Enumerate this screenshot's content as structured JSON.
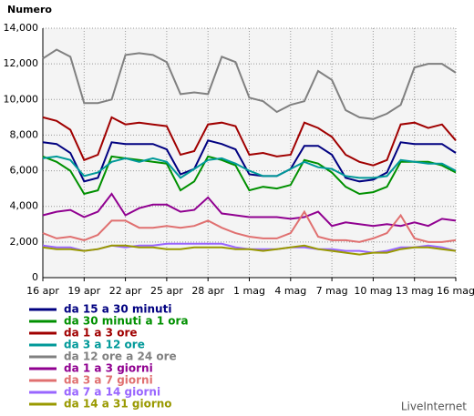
{
  "chart_data": {
    "type": "line",
    "ylabel": "Numero",
    "brand": "LiveInternet",
    "grid": true,
    "legend": "bottom",
    "categories": [
      "16 apr",
      null,
      null,
      "19 apr",
      null,
      null,
      "22 apr",
      null,
      null,
      "25 apr",
      null,
      null,
      "28 apr",
      null,
      null,
      "1 mag",
      null,
      null,
      "4 mag",
      null,
      null,
      "7 mag",
      null,
      null,
      "10 mag",
      null,
      null,
      "13 mag",
      null,
      null,
      "16 mag"
    ],
    "ylim": [
      0,
      14000
    ],
    "yticks": [
      0,
      {
        "value": 2000,
        "label": "2,000"
      },
      {
        "value": 4000,
        "label": "4,000"
      },
      {
        "value": 6000,
        "label": "6,000"
      },
      {
        "value": 8000,
        "label": "8,000"
      },
      {
        "value": 10000,
        "label": "10,000"
      },
      {
        "value": 12000,
        "label": "12,000"
      },
      {
        "value": 14000,
        "label": "14,000"
      }
    ],
    "series": [
      {
        "name": "da 15 a 30 minuti",
        "color": "#000080",
        "values": [
          7600,
          7500,
          7000,
          5400,
          5600,
          7600,
          7500,
          7500,
          7500,
          7200,
          5800,
          6100,
          7700,
          7500,
          7200,
          5800,
          5700,
          5700,
          6100,
          7400,
          7400,
          6900,
          5600,
          5400,
          5500,
          5900,
          7600,
          7500,
          7500,
          7500,
          7000
        ]
      },
      {
        "name": "da 30 minuti a 1 ora",
        "color": "#009000",
        "values": [
          6800,
          6500,
          6000,
          4700,
          4900,
          6800,
          6700,
          6600,
          6500,
          6400,
          4900,
          5400,
          6800,
          6600,
          6300,
          4900,
          5100,
          5000,
          5200,
          6600,
          6400,
          5900,
          5100,
          4700,
          4800,
          5100,
          6500,
          6500,
          6500,
          6300,
          5900
        ]
      },
      {
        "name": "da 1 a 3 ore",
        "color": "#a00000",
        "values": [
          9000,
          8800,
          8300,
          6600,
          6900,
          9000,
          8600,
          8700,
          8600,
          8500,
          6900,
          7100,
          8600,
          8700,
          8500,
          6900,
          7000,
          6800,
          6900,
          8700,
          8400,
          7900,
          6900,
          6500,
          6300,
          6600,
          8600,
          8700,
          8400,
          8600,
          7700
        ]
      },
      {
        "name": "da 3 a 12 ore",
        "color": "#009999",
        "values": [
          6700,
          6800,
          6600,
          5700,
          5900,
          6500,
          6700,
          6500,
          6700,
          6500,
          5600,
          6100,
          6600,
          6700,
          6400,
          6000,
          5700,
          5700,
          6100,
          6500,
          6200,
          6100,
          5700,
          5600,
          5600,
          5700,
          6600,
          6500,
          6400,
          6400,
          6000
        ]
      },
      {
        "name": "da 12 ore a 24 ore",
        "color": "#808080",
        "values": [
          12300,
          12800,
          12400,
          9800,
          9800,
          10000,
          12500,
          12600,
          12500,
          12100,
          10300,
          10400,
          10300,
          12400,
          12100,
          10100,
          9900,
          9300,
          9700,
          9900,
          11600,
          11100,
          9400,
          9000,
          8900,
          9200,
          9700,
          11800,
          12000,
          12000,
          11500
        ]
      },
      {
        "name": "da 1 a 3 giorni",
        "color": "#900090",
        "values": [
          3500,
          3700,
          3800,
          3400,
          3700,
          4700,
          3500,
          3900,
          4100,
          4100,
          3700,
          3800,
          4500,
          3600,
          3500,
          3400,
          3400,
          3400,
          3300,
          3400,
          3700,
          2900,
          3100,
          3000,
          2900,
          3000,
          2900,
          3100,
          2900,
          3300,
          3200
        ]
      },
      {
        "name": "da 3 a 7 giorni",
        "color": "#e07070",
        "values": [
          2500,
          2200,
          2300,
          2100,
          2400,
          3200,
          3200,
          2800,
          2800,
          2900,
          2800,
          2900,
          3200,
          2800,
          2500,
          2300,
          2200,
          2200,
          2500,
          3700,
          2300,
          2100,
          2100,
          2000,
          2200,
          2500,
          3500,
          2200,
          2000,
          2000,
          2100
        ]
      },
      {
        "name": "da 7 a 14 giorni",
        "color": "#9966ff",
        "values": [
          1800,
          1700,
          1700,
          1500,
          1600,
          1800,
          1700,
          1800,
          1800,
          1900,
          1900,
          1900,
          1900,
          1900,
          1700,
          1600,
          1600,
          1600,
          1700,
          1700,
          1600,
          1600,
          1500,
          1500,
          1400,
          1500,
          1700,
          1700,
          1800,
          1700,
          1500
        ]
      },
      {
        "name": "da 14 a 31 giorno",
        "color": "#999900",
        "values": [
          1700,
          1600,
          1600,
          1500,
          1600,
          1800,
          1800,
          1700,
          1700,
          1600,
          1600,
          1700,
          1700,
          1700,
          1600,
          1600,
          1500,
          1600,
          1700,
          1800,
          1600,
          1500,
          1400,
          1300,
          1400,
          1400,
          1600,
          1700,
          1700,
          1600,
          1500
        ]
      }
    ]
  }
}
